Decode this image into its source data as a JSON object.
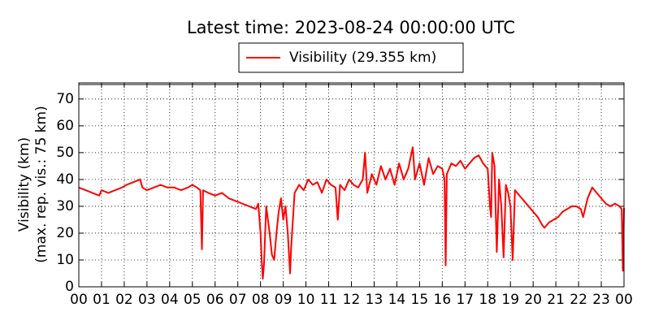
{
  "chart_data": {
    "type": "line",
    "title": "Latest time: 2023-08-24 00:00:00 UTC",
    "y_label": [
      "Visibility (km)",
      "(max. rep. vis.: 75 km)"
    ],
    "x": [
      0,
      0.3,
      0.6,
      0.9,
      1.0,
      1.3,
      1.6,
      1.9,
      2.1,
      2.4,
      2.7,
      2.8,
      3.0,
      3.3,
      3.6,
      3.9,
      4.2,
      4.5,
      4.8,
      5.0,
      5.2,
      5.35,
      5.42,
      5.47,
      5.7,
      6.0,
      6.3,
      6.6,
      6.9,
      7.2,
      7.5,
      7.8,
      7.9,
      8.0,
      8.05,
      8.1,
      8.15,
      8.25,
      8.4,
      8.5,
      8.6,
      8.7,
      8.8,
      8.9,
      9.0,
      9.1,
      9.2,
      9.3,
      9.35,
      9.5,
      9.7,
      9.9,
      10.1,
      10.3,
      10.5,
      10.7,
      10.9,
      11.1,
      11.3,
      11.4,
      11.5,
      11.7,
      11.9,
      12.1,
      12.3,
      12.5,
      12.6,
      12.7,
      12.9,
      13.1,
      13.3,
      13.5,
      13.7,
      13.9,
      14.1,
      14.3,
      14.5,
      14.7,
      14.8,
      15.0,
      15.2,
      15.4,
      15.6,
      15.8,
      16.0,
      16.1,
      16.15,
      16.2,
      16.4,
      16.6,
      16.8,
      17.0,
      17.2,
      17.4,
      17.6,
      17.8,
      18.0,
      18.1,
      18.15,
      18.2,
      18.3,
      18.4,
      18.5,
      18.6,
      18.7,
      18.8,
      18.9,
      19.0,
      19.1,
      19.2,
      19.4,
      19.6,
      19.8,
      20.0,
      20.2,
      20.4,
      20.5,
      20.7,
      20.9,
      21.1,
      21.3,
      21.5,
      21.7,
      21.9,
      22.1,
      22.2,
      22.4,
      22.6,
      22.8,
      23.0,
      23.2,
      23.4,
      23.6,
      23.8,
      23.9,
      23.95,
      24.0
    ],
    "series": [
      {
        "name": "Visibility (29.355 km)",
        "color": "#ff0000",
        "values": [
          37,
          36,
          35,
          34,
          36,
          35,
          36,
          37,
          38,
          39,
          40,
          37,
          36,
          37,
          38,
          37,
          37,
          36,
          37,
          38,
          37,
          36,
          14,
          36,
          35,
          34,
          35,
          33,
          32,
          31,
          30,
          29,
          31,
          20,
          10,
          3,
          8,
          30,
          20,
          12,
          10,
          20,
          28,
          33,
          25,
          30,
          20,
          5,
          15,
          35,
          38,
          36,
          40,
          38,
          39,
          35,
          40,
          38,
          37,
          25,
          38,
          36,
          40,
          38,
          37,
          40,
          50,
          35,
          42,
          38,
          45,
          40,
          44,
          38,
          46,
          40,
          44,
          52,
          40,
          46,
          38,
          48,
          42,
          45,
          44,
          40,
          8,
          42,
          46,
          45,
          47,
          44,
          46,
          48,
          49,
          46,
          44,
          30,
          26,
          50,
          45,
          13,
          40,
          30,
          11,
          38,
          35,
          30,
          10,
          36,
          34,
          32,
          30,
          28,
          26,
          23,
          22,
          24,
          25,
          26,
          28,
          29,
          30,
          30,
          29,
          26,
          33,
          37,
          35,
          33,
          31,
          30,
          31,
          30,
          29,
          6,
          29.355
        ]
      }
    ],
    "xlim": [
      0,
      24
    ],
    "ylim": [
      0,
      76
    ],
    "xticks": [
      {
        "value": 0,
        "label": "00"
      },
      {
        "value": 1,
        "label": "01"
      },
      {
        "value": 2,
        "label": "02"
      },
      {
        "value": 3,
        "label": "03"
      },
      {
        "value": 4,
        "label": "04"
      },
      {
        "value": 5,
        "label": "05"
      },
      {
        "value": 6,
        "label": "06"
      },
      {
        "value": 7,
        "label": "07"
      },
      {
        "value": 8,
        "label": "08"
      },
      {
        "value": 9,
        "label": "09"
      },
      10,
      11,
      12,
      13,
      14,
      15,
      16,
      17,
      18,
      19,
      20,
      21,
      22,
      23,
      {
        "value": 24,
        "label": "00"
      }
    ],
    "yticks": [
      0,
      10,
      20,
      30,
      40,
      50,
      60,
      70
    ],
    "grid": true
  }
}
